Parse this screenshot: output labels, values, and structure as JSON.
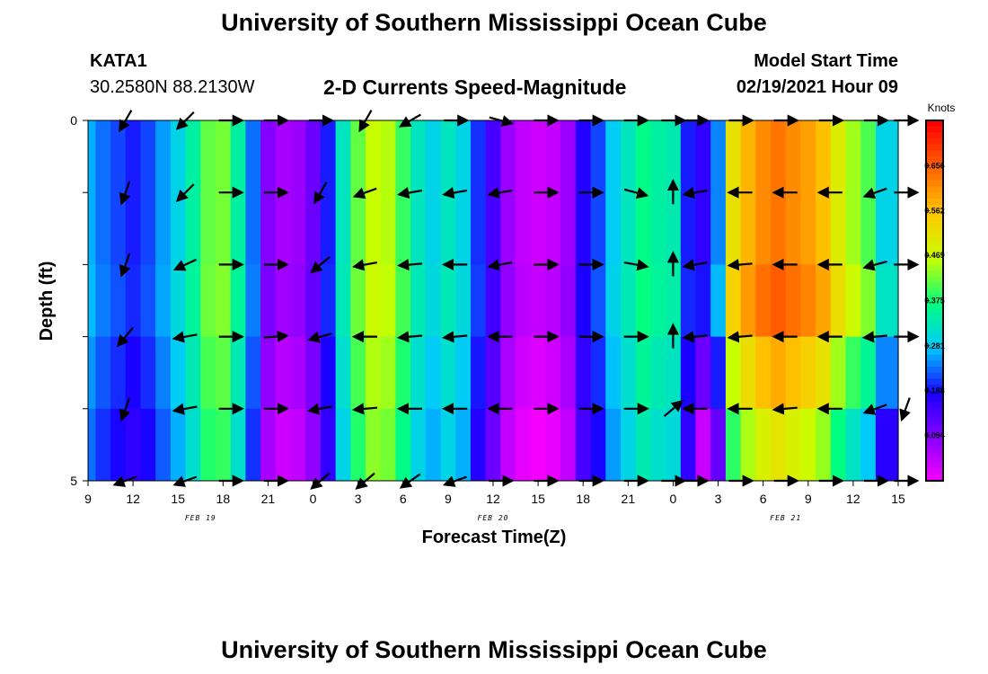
{
  "header": {
    "title": "University of Southern Mississippi Ocean Cube",
    "station": "KATA1",
    "coords": "30.2580N 88.2130W",
    "plot_title": "2-D Currents Speed-Magnitude",
    "model_label": "Model Start Time",
    "model_time": "02/19/2021 Hour 09"
  },
  "footer": {
    "title": "University of Southern Mississippi Ocean Cube"
  },
  "colors": {
    "scale": [
      "#ff00ff",
      "#8a00ff",
      "#1a00ff",
      "#00c8ff",
      "#00ff80",
      "#c8ff00",
      "#ffc800",
      "#ff6400",
      "#ff0000"
    ]
  },
  "chart_data": {
    "type": "heatmap",
    "title": "2-D Currents Speed-Magnitude",
    "xlabel": "Forecast Time(Z)",
    "ylabel": "Depth (ft)",
    "x_tick_labels": [
      "9",
      "12",
      "15",
      "18",
      "21",
      "0",
      "3",
      "6",
      "9",
      "12",
      "15",
      "18",
      "21",
      "0",
      "3",
      "6",
      "9",
      "12",
      "15"
    ],
    "x_hours": [
      0,
      3,
      6,
      9,
      12,
      15,
      18,
      21,
      24,
      27,
      30,
      33,
      36,
      39,
      42,
      45,
      48,
      51,
      54
    ],
    "date_labels": [
      {
        "text": "FEB 19",
        "hour": 7.5
      },
      {
        "text": "FEB 20",
        "hour": 27
      },
      {
        "text": "FEB 21",
        "hour": 46.5
      }
    ],
    "y_tick_labels": [
      "0",
      "5"
    ],
    "ylim": [
      0,
      5
    ],
    "depth_rows": [
      0,
      1,
      2,
      3,
      4,
      5
    ],
    "colorbar": {
      "unit": "Knots",
      "range": [
        0,
        0.75
      ],
      "tick_labels": [
        "0.656",
        "0.562",
        "0.469",
        "0.375",
        "0.281",
        "0.188",
        "0.094"
      ],
      "tick_values": [
        0.656,
        0.562,
        0.469,
        0.375,
        0.281,
        0.188,
        0.094
      ]
    },
    "speed_profile": {
      "hours": [
        0,
        1,
        2,
        3,
        4,
        5,
        6,
        7,
        8,
        9,
        10,
        11,
        12,
        13,
        14,
        15,
        16,
        17,
        18,
        19,
        20,
        21,
        22,
        23,
        24,
        25,
        26,
        27,
        28,
        29,
        30,
        31,
        32,
        33,
        34,
        35,
        36,
        37,
        38,
        39,
        40,
        41,
        42,
        43,
        44,
        45,
        46,
        47,
        48,
        49,
        50,
        51,
        52,
        53,
        54
      ],
      "speeds": [
        0.27,
        0.24,
        0.22,
        0.2,
        0.22,
        0.26,
        0.3,
        0.35,
        0.42,
        0.43,
        0.35,
        0.24,
        0.1,
        0.07,
        0.08,
        0.12,
        0.2,
        0.33,
        0.42,
        0.47,
        0.46,
        0.4,
        0.33,
        0.3,
        0.33,
        0.3,
        0.21,
        0.15,
        0.08,
        0.05,
        0.04,
        0.05,
        0.08,
        0.18,
        0.22,
        0.29,
        0.33,
        0.37,
        0.35,
        0.34,
        0.2,
        0.17,
        0.25,
        0.52,
        0.58,
        0.62,
        0.64,
        0.62,
        0.6,
        0.57,
        0.5,
        0.45,
        0.41,
        0.3,
        0.3
      ]
    },
    "vectors": {
      "hours": [
        2.5,
        6.5,
        9.5,
        12.5,
        15.5,
        18.5,
        21.5,
        24.5,
        27.5,
        30.5,
        33.5,
        36.5,
        39,
        40.5,
        43.5,
        46.5,
        49.5,
        52.5,
        54.5
      ],
      "rows": [
        [
          240,
          225,
          0,
          0,
          0,
          240,
          210,
          0,
          345,
          0,
          0,
          0,
          0,
          0,
          0,
          0,
          0,
          0,
          0
        ],
        [
          250,
          225,
          0,
          0,
          240,
          200,
          190,
          190,
          190,
          0,
          0,
          345,
          90,
          190,
          180,
          180,
          180,
          200,
          0
        ],
        [
          250,
          205,
          0,
          0,
          220,
          190,
          185,
          180,
          190,
          0,
          0,
          350,
          90,
          190,
          185,
          180,
          180,
          195,
          0
        ],
        [
          230,
          190,
          0,
          5,
          195,
          180,
          185,
          185,
          180,
          0,
          0,
          0,
          90,
          185,
          185,
          180,
          180,
          185,
          0
        ],
        [
          250,
          190,
          0,
          0,
          190,
          185,
          180,
          180,
          180,
          0,
          0,
          0,
          40,
          180,
          180,
          185,
          180,
          200,
          250
        ],
        [
          200,
          200,
          0,
          0,
          220,
          220,
          215,
          200,
          0,
          0,
          0,
          0,
          0,
          0,
          0,
          0,
          0,
          0,
          0
        ]
      ]
    }
  }
}
